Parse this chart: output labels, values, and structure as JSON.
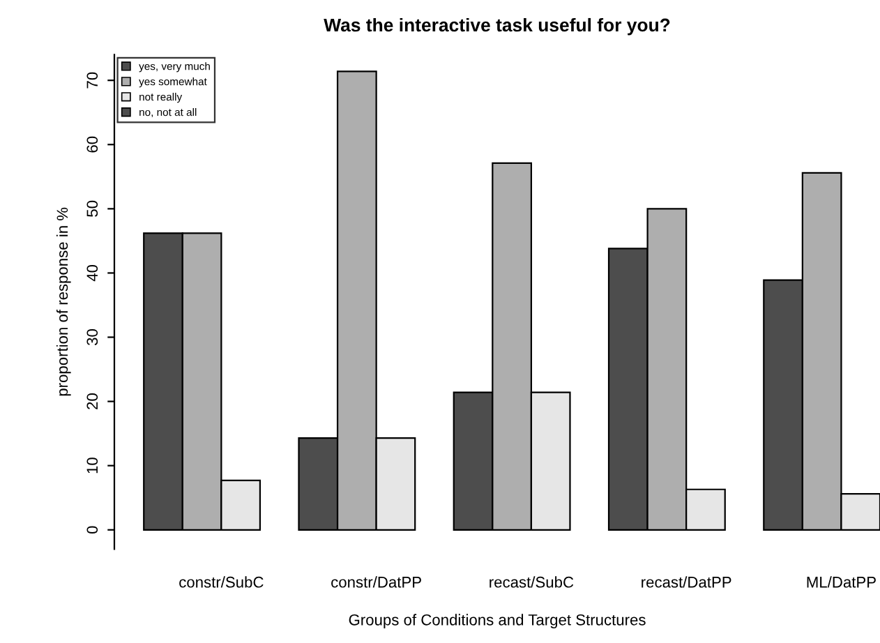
{
  "chart_data": {
    "type": "bar",
    "title": "Was the interactive task useful for you?",
    "xlabel": "Groups of Conditions and Target Structures",
    "ylabel": "proportion of response in %",
    "categories": [
      "constr/SubC",
      "constr/DatPP",
      "recast/SubC",
      "recast/DatPP",
      "ML/DatPP"
    ],
    "series": [
      {
        "name": "yes, very much",
        "color": "#4d4d4d",
        "values": [
          46.2,
          14.3,
          21.4,
          43.8,
          38.9
        ]
      },
      {
        "name": "yes somewhat",
        "color": "#aeaeae",
        "values": [
          46.2,
          71.4,
          57.1,
          50.0,
          55.6
        ]
      },
      {
        "name": "not really",
        "color": "#e6e6e6",
        "values": [
          7.7,
          14.3,
          21.4,
          6.3,
          5.6
        ]
      },
      {
        "name": "no, not at all",
        "color": "#4d4d4d",
        "values": [
          0,
          0,
          0,
          0,
          0
        ]
      }
    ],
    "ylim": [
      -3,
      74
    ],
    "yticks": [
      0,
      10,
      20,
      30,
      40,
      50,
      60,
      70
    ],
    "grid": false,
    "legend": "top left"
  }
}
